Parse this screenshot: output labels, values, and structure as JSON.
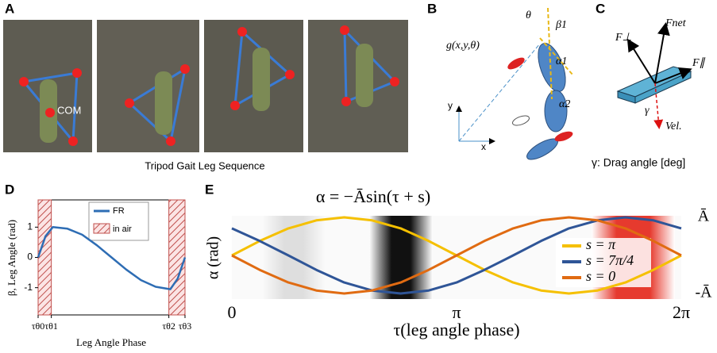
{
  "panels": {
    "a": {
      "label": "A",
      "com": "COM",
      "caption": "Tripod Gait Leg Sequence"
    },
    "b": {
      "label": "B",
      "pose": "g(x,y,θ)",
      "theta": "θ",
      "beta1": "β1",
      "alpha1": "α1",
      "alpha2": "α2",
      "y": "y",
      "x": "x"
    },
    "c": {
      "label": "C",
      "fperp": "F⊥",
      "fnet": "Fnet",
      "fpar": "F∥",
      "gamma": "γ",
      "vel": "Vel.",
      "caption": "γ: Drag angle [deg]"
    },
    "d": {
      "label": "D"
    },
    "e": {
      "label": "E"
    }
  },
  "chart_data": [
    {
      "type": "line",
      "ylabel": "β, Leg Angle (rad)",
      "xlabel": "Leg Angle Phase",
      "x": [
        0,
        0.05,
        0.1,
        0.2,
        0.3,
        0.4,
        0.5,
        0.6,
        0.7,
        0.8,
        0.9,
        0.95,
        1.0
      ],
      "series": [
        {
          "name": "FR",
          "color": "#2e6db4",
          "values": [
            0,
            0.7,
            1.0,
            0.95,
            0.75,
            0.4,
            0.0,
            -0.4,
            -0.75,
            -0.97,
            -1.05,
            -0.7,
            0
          ]
        }
      ],
      "in_air": {
        "name": "in air",
        "color": "#c0504d",
        "ranges": [
          [
            0,
            0.09
          ],
          [
            0.89,
            1.0
          ]
        ]
      },
      "xlim": [
        0,
        1
      ],
      "ylim": [
        -1.9,
        1.9
      ],
      "yticks": [
        1,
        0,
        -1
      ],
      "xticks": [
        {
          "value": 0,
          "label": "τθ0"
        },
        {
          "value": 0.09,
          "label": "τθ1"
        },
        {
          "value": 0.89,
          "label": "τθ2"
        },
        {
          "value": 1.0,
          "label": "τθ3"
        }
      ]
    },
    {
      "type": "line",
      "title": "α = −Āsin(τ + s)",
      "ylabel": "α (rad)",
      "xlabel": "τ(leg angle phase)",
      "x": [
        0,
        0.39,
        0.79,
        1.18,
        1.57,
        1.96,
        2.36,
        2.75,
        3.14,
        3.53,
        3.93,
        4.32,
        4.71,
        5.11,
        5.5,
        5.89,
        6.28
      ],
      "series": [
        {
          "name": "s = π",
          "color": "#f5c000",
          "values": [
            0,
            0.38,
            0.71,
            0.92,
            1,
            0.92,
            0.71,
            0.38,
            0,
            -0.38,
            -0.71,
            -0.92,
            -1,
            -0.92,
            -0.71,
            -0.38,
            0
          ]
        },
        {
          "name": "s = 7π/4",
          "color": "#2f5597",
          "values": [
            0.71,
            0.38,
            0,
            -0.38,
            -0.71,
            -0.92,
            -1,
            -0.92,
            -0.71,
            -0.38,
            0,
            0.38,
            0.71,
            0.92,
            1,
            0.92,
            0.71
          ]
        },
        {
          "name": "s = 0",
          "color": "#e06b12",
          "values": [
            0,
            -0.38,
            -0.71,
            -0.92,
            -1,
            -0.92,
            -0.71,
            -0.38,
            0,
            0.38,
            0.71,
            0.92,
            1,
            0.92,
            0.71,
            0.38,
            0
          ]
        }
      ],
      "xlim": [
        0,
        6.28
      ],
      "ylim": [
        -1.25,
        1.25
      ],
      "xticks": [
        0,
        {
          "value": 3.14,
          "label": "π"
        },
        {
          "value": 6.28,
          "label": "2π"
        }
      ],
      "yticks": [
        {
          "value": 1,
          "label": "Ā"
        },
        {
          "value": -1,
          "label": "-Ā"
        }
      ]
    }
  ]
}
